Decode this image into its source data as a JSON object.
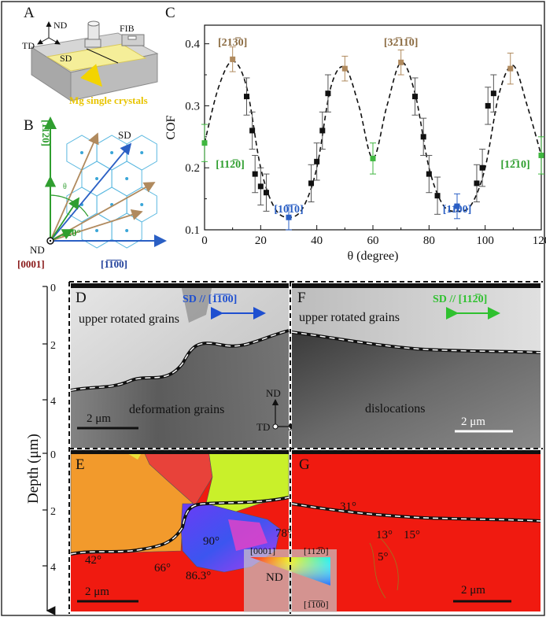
{
  "panels": {
    "A": {
      "letter": "A",
      "nd": "ND",
      "td": "TD",
      "sd": "SD",
      "fib": "FIB",
      "sample": "Mg single crystals"
    },
    "B": {
      "letter": "B",
      "sd": "SD",
      "y_axis": "[11̅2̅0]",
      "x_axis": "[1̅1̅0̅0]",
      "nd": "ND",
      "origin": "[0001]",
      "angle": "120°",
      "small_label": "θ"
    },
    "C": {
      "letter": "C"
    },
    "D": {
      "letter": "D",
      "direction": "SD // [1̅1̅0̅0]",
      "upper": "upper rotated grains",
      "lower": "deformation grains",
      "scale": "2 μm",
      "nd": "ND",
      "td": "TD",
      "sd": "SD"
    },
    "E": {
      "letter": "E",
      "angle_42": "42°",
      "angle_66": "66°",
      "angle_86": "86.3°",
      "angle_90": "90°",
      "angle_78": "78°",
      "scale": "2 μm",
      "key": {
        "nd": "ND",
        "c0001": "[0001]",
        "c11": "[112̅0]",
        "c10": "[1̅1̅0̅0]"
      }
    },
    "F": {
      "letter": "F",
      "direction": "SD // [112̅0]",
      "upper": "upper rotated grains",
      "lower": "dislocations",
      "scale": "2 μm"
    },
    "G": {
      "letter": "G",
      "angle_31": "31°",
      "angle_13": "13°",
      "angle_15": "15°",
      "angle_5": "5°",
      "scale": "2 μm"
    }
  },
  "depth_axis": {
    "label": "Depth (μm)",
    "ticks_top": [
      "0",
      "2",
      "4"
    ],
    "ticks_bottom": [
      "0",
      "2",
      "4"
    ]
  },
  "colors": {
    "ipf_red": "#f01a10",
    "ipf_orange": "#f29a2c",
    "ipf_lime": "#c9f02a",
    "brown_point": "#b08a5e",
    "green_point": "#3fb63f",
    "blue_point": "#2a5fc4",
    "black_point": "#111111"
  },
  "chart_data": {
    "type": "scatter",
    "xlabel": "θ (degree)",
    "ylabel": "COF",
    "xlim": [
      0,
      120
    ],
    "ylim": [
      0.1,
      0.43
    ],
    "xticks": [
      "0",
      "20",
      "40",
      "60",
      "80",
      "100",
      "120"
    ],
    "yticks": [
      "0.1",
      "0.2",
      "0.3",
      "0.4"
    ],
    "grid": false,
    "series": [
      {
        "name": "",
        "color": "#111111",
        "x": [
          15,
          17,
          18,
          20,
          22,
          38,
          40,
          42,
          44,
          75,
          78,
          80,
          83,
          97,
          99,
          101,
          103
        ],
        "y": [
          0.315,
          0.26,
          0.19,
          0.17,
          0.16,
          0.175,
          0.21,
          0.26,
          0.32,
          0.315,
          0.25,
          0.19,
          0.155,
          0.175,
          0.2,
          0.3,
          0.32
        ],
        "err": [
          0.03,
          0.03,
          0.03,
          0.03,
          0.03,
          0.03,
          0.03,
          0.03,
          0.03,
          0.03,
          0.03,
          0.03,
          0.03,
          0.03,
          0.03,
          0.03,
          0.03
        ]
      },
      {
        "name": "",
        "color": "#b08a5e",
        "x": [
          10,
          50,
          70,
          109
        ],
        "y": [
          0.375,
          0.36,
          0.37,
          0.36
        ],
        "err": [
          0.02,
          0.02,
          0.02,
          0.025
        ]
      },
      {
        "name": "",
        "color": "#3fb63f",
        "x": [
          0,
          60,
          120
        ],
        "y": [
          0.24,
          0.215,
          0.22
        ],
        "err": [
          0.03,
          0.025,
          0.03
        ]
      },
      {
        "name": "",
        "color": "#2a5fc4",
        "x": [
          30,
          90
        ],
        "y": [
          0.12,
          0.138
        ],
        "err": [
          0.02,
          0.02
        ]
      }
    ],
    "fit": {
      "style": "dashed",
      "x": [
        0,
        5,
        10,
        15,
        20,
        25,
        30,
        35,
        40,
        45,
        50,
        55,
        60,
        65,
        70,
        75,
        80,
        85,
        90,
        95,
        100,
        105,
        110,
        115,
        120
      ],
      "y": [
        0.24,
        0.33,
        0.372,
        0.33,
        0.2,
        0.135,
        0.12,
        0.135,
        0.2,
        0.33,
        0.362,
        0.3,
        0.215,
        0.3,
        0.37,
        0.32,
        0.2,
        0.14,
        0.13,
        0.14,
        0.2,
        0.32,
        0.365,
        0.3,
        0.22
      ]
    },
    "annotations": [
      {
        "text": "[213̅0]",
        "x": 10,
        "y": 0.397,
        "color": "#8a6a40"
      },
      {
        "text": "[32̅11̅0]",
        "x": 70,
        "y": 0.397,
        "color": "#8a6a40"
      },
      {
        "text": "[112̅0]",
        "x": 4,
        "y": 0.2,
        "color": "#2f9e2f"
      },
      {
        "text": "[101̅0]",
        "x": 30,
        "y": 0.128,
        "color": "#2a5fc4"
      },
      {
        "text": "[11̅00]",
        "x": 90,
        "y": 0.128,
        "color": "#2a5fc4"
      },
      {
        "text": "[12̅10]",
        "x": 116,
        "y": 0.2,
        "color": "#2f9e2f"
      }
    ]
  }
}
